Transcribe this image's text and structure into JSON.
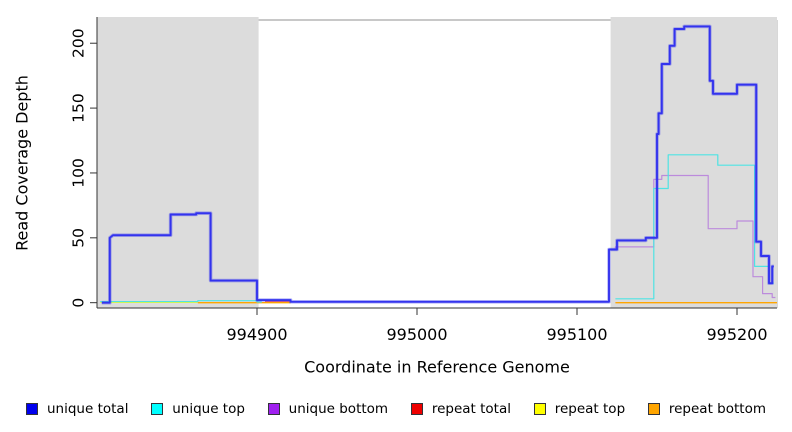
{
  "figure": {
    "y_axis_label": "Read Coverage Depth",
    "x_axis_label": "Coordinate in Reference Genome"
  },
  "chart_data": {
    "type": "line",
    "subtype": "step-coverage-profile",
    "title": "",
    "xlabel": "Coordinate in Reference Genome",
    "ylabel": "Read Coverage Depth",
    "xlim": [
      994800,
      995225
    ],
    "ylim": [
      -4.1,
      217.9
    ],
    "x_ticks": [
      994900,
      995000,
      995100,
      995200
    ],
    "y_ticks": [
      0,
      50,
      100,
      150,
      200
    ],
    "grid": false,
    "legend_position": "bottom",
    "plot_bg": "#ffffff",
    "shaded_region_color": "#dcdcdc",
    "shaded_regions": [
      {
        "name": "left-repeat-region",
        "x0": 994800,
        "x1": 994901
      },
      {
        "name": "right-repeat-region",
        "x0": 995121,
        "x1": 995225
      }
    ],
    "legend": [
      {
        "label": "unique total",
        "color": "#0000EE"
      },
      {
        "label": "unique top",
        "color": "#00FFFF"
      },
      {
        "label": "unique bottom",
        "color": "#A020F0"
      },
      {
        "label": "repeat total",
        "color": "#EE0000"
      },
      {
        "label": "repeat top",
        "color": "#FFFF00"
      },
      {
        "label": "repeat bottom",
        "color": "#FFA500"
      }
    ],
    "series": [
      {
        "name": "repeat top",
        "color": "#FFFF00",
        "width": 1.2,
        "segments": [
          [
            [
              994802,
              0.3
            ],
            [
              994863,
              0.3
            ]
          ]
        ]
      },
      {
        "name": "repeat total",
        "color": "#EE3333",
        "width": 1.2,
        "segments": [
          [
            [
              994905,
              1.2
            ],
            [
              994921,
              1.2
            ]
          ]
        ]
      },
      {
        "name": "repeat bottom",
        "color": "#FFA500",
        "width": 1.4,
        "segments": [
          [
            [
              994863,
              0
            ],
            [
              994921,
              0
            ]
          ],
          [
            [
              995124,
              0
            ],
            [
              995225,
              0
            ]
          ]
        ]
      },
      {
        "name": "unique bottom",
        "color": "#BC8BDC",
        "width": 1.2,
        "segments": [
          [
            [
              994921,
              0.6
            ],
            [
              995120,
              0.6
            ],
            [
              995120,
              41
            ],
            [
              995124,
              41
            ],
            [
              995124,
              43
            ],
            [
              995148,
              43
            ],
            [
              995148,
              95
            ],
            [
              995153,
              95
            ],
            [
              995153,
              98
            ],
            [
              995182,
              98
            ],
            [
              995182,
              57
            ],
            [
              995200,
              57
            ],
            [
              995200,
              63
            ],
            [
              995210,
              63
            ],
            [
              995210,
              20
            ],
            [
              995216,
              20
            ],
            [
              995216,
              7
            ],
            [
              995222,
              7
            ],
            [
              995222,
              4
            ],
            [
              995224,
              4
            ]
          ]
        ]
      },
      {
        "name": "unique top",
        "color": "#4FE3E3",
        "width": 1.2,
        "segments": [
          [
            [
              994802,
              0.8
            ],
            [
              994863,
              0.8
            ],
            [
              994863,
              1.5
            ],
            [
              994900,
              1.5
            ],
            [
              994900,
              0.5
            ],
            [
              994903,
              0.5
            ]
          ],
          [
            [
              995124,
              3
            ],
            [
              995148,
              3
            ],
            [
              995148,
              88
            ],
            [
              995157,
              88
            ],
            [
              995157,
              114
            ],
            [
              995188,
              114
            ],
            [
              995188,
              106
            ],
            [
              995211,
              106
            ],
            [
              995211,
              28
            ],
            [
              995220,
              28
            ],
            [
              995220,
              15
            ],
            [
              995223,
              15
            ]
          ]
        ]
      },
      {
        "name": "unique total",
        "color": "#3333EE",
        "width": 1.9,
        "halo": true,
        "segments": [
          [
            [
              994803,
              0
            ],
            [
              994808,
              0
            ],
            [
              994808,
              50
            ],
            [
              994810,
              52
            ],
            [
              994846,
              52
            ],
            [
              994846,
              68
            ],
            [
              994862,
              68
            ],
            [
              994862,
              69
            ],
            [
              994871,
              69
            ],
            [
              994871,
              17
            ],
            [
              994900,
              17
            ],
            [
              994900,
              2
            ],
            [
              994921,
              2
            ],
            [
              994921,
              0.7
            ],
            [
              995120,
              0.7
            ],
            [
              995120,
              41
            ],
            [
              995125,
              41
            ],
            [
              995125,
              48
            ],
            [
              995143,
              48
            ],
            [
              995143,
              50
            ],
            [
              995150,
              50
            ],
            [
              995150,
              130
            ],
            [
              995151,
              130
            ],
            [
              995151,
              146
            ],
            [
              995153,
              146
            ],
            [
              995153,
              184
            ],
            [
              995158,
              184
            ],
            [
              995158,
              198
            ],
            [
              995161,
              198
            ],
            [
              995161,
              211
            ],
            [
              995167,
              211
            ],
            [
              995167,
              213
            ],
            [
              995183,
              213
            ],
            [
              995183,
              171
            ],
            [
              995185,
              171
            ],
            [
              995185,
              161
            ],
            [
              995200,
              161
            ],
            [
              995200,
              168
            ],
            [
              995212,
              168
            ],
            [
              995212,
              47
            ],
            [
              995215,
              47
            ],
            [
              995215,
              36
            ],
            [
              995220,
              36
            ],
            [
              995220,
              15
            ],
            [
              995222,
              15
            ],
            [
              995222,
              28
            ],
            [
              995223,
              28
            ]
          ]
        ]
      }
    ]
  }
}
